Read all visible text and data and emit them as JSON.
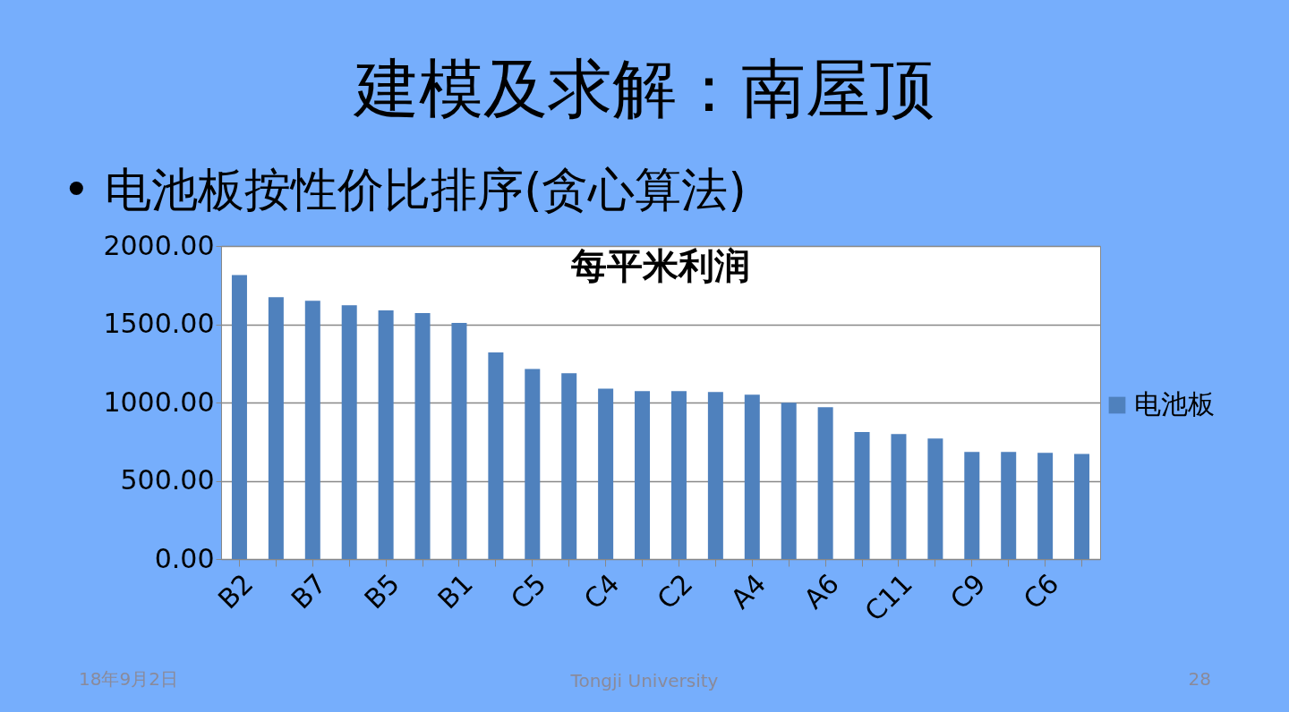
{
  "chart_data": {
    "type": "bar",
    "title": "建模及求解：南屋顶",
    "subtitle": "• 电池板按性价比排序(贪心算法)",
    "annotations": [
      "每平米利润",
      "18年9月2日",
      "Tongji University",
      "28"
    ],
    "categories": [
      "B2",
      null,
      "B7",
      null,
      "B5",
      null,
      "B1",
      null,
      "C5",
      null,
      "C4",
      null,
      "C2",
      null,
      "A4",
      null,
      "A6",
      null,
      "C11",
      null,
      "C9",
      null,
      "C6",
      null
    ],
    "series": [
      {
        "name": "电池板",
        "color": "#4f81bd",
        "values": [
          1815,
          1673,
          1650,
          1622,
          1588,
          1571,
          1508,
          1320,
          1215,
          1187,
          1089,
          1073,
          1073,
          1067,
          1050,
          999,
          970,
          811,
          799,
          770,
          684,
          684,
          678,
          672
        ]
      }
    ],
    "ylim": [
      0,
      2000
    ],
    "yticks": [
      {
        "value": 0,
        "label": "0.00"
      },
      {
        "value": 500,
        "label": "500.00"
      },
      {
        "value": 1000,
        "label": "1000.00"
      },
      {
        "value": 1500,
        "label": "1500.00"
      },
      {
        "value": 2000,
        "label": "2000.00"
      }
    ],
    "grid": "y",
    "legend": "right"
  }
}
